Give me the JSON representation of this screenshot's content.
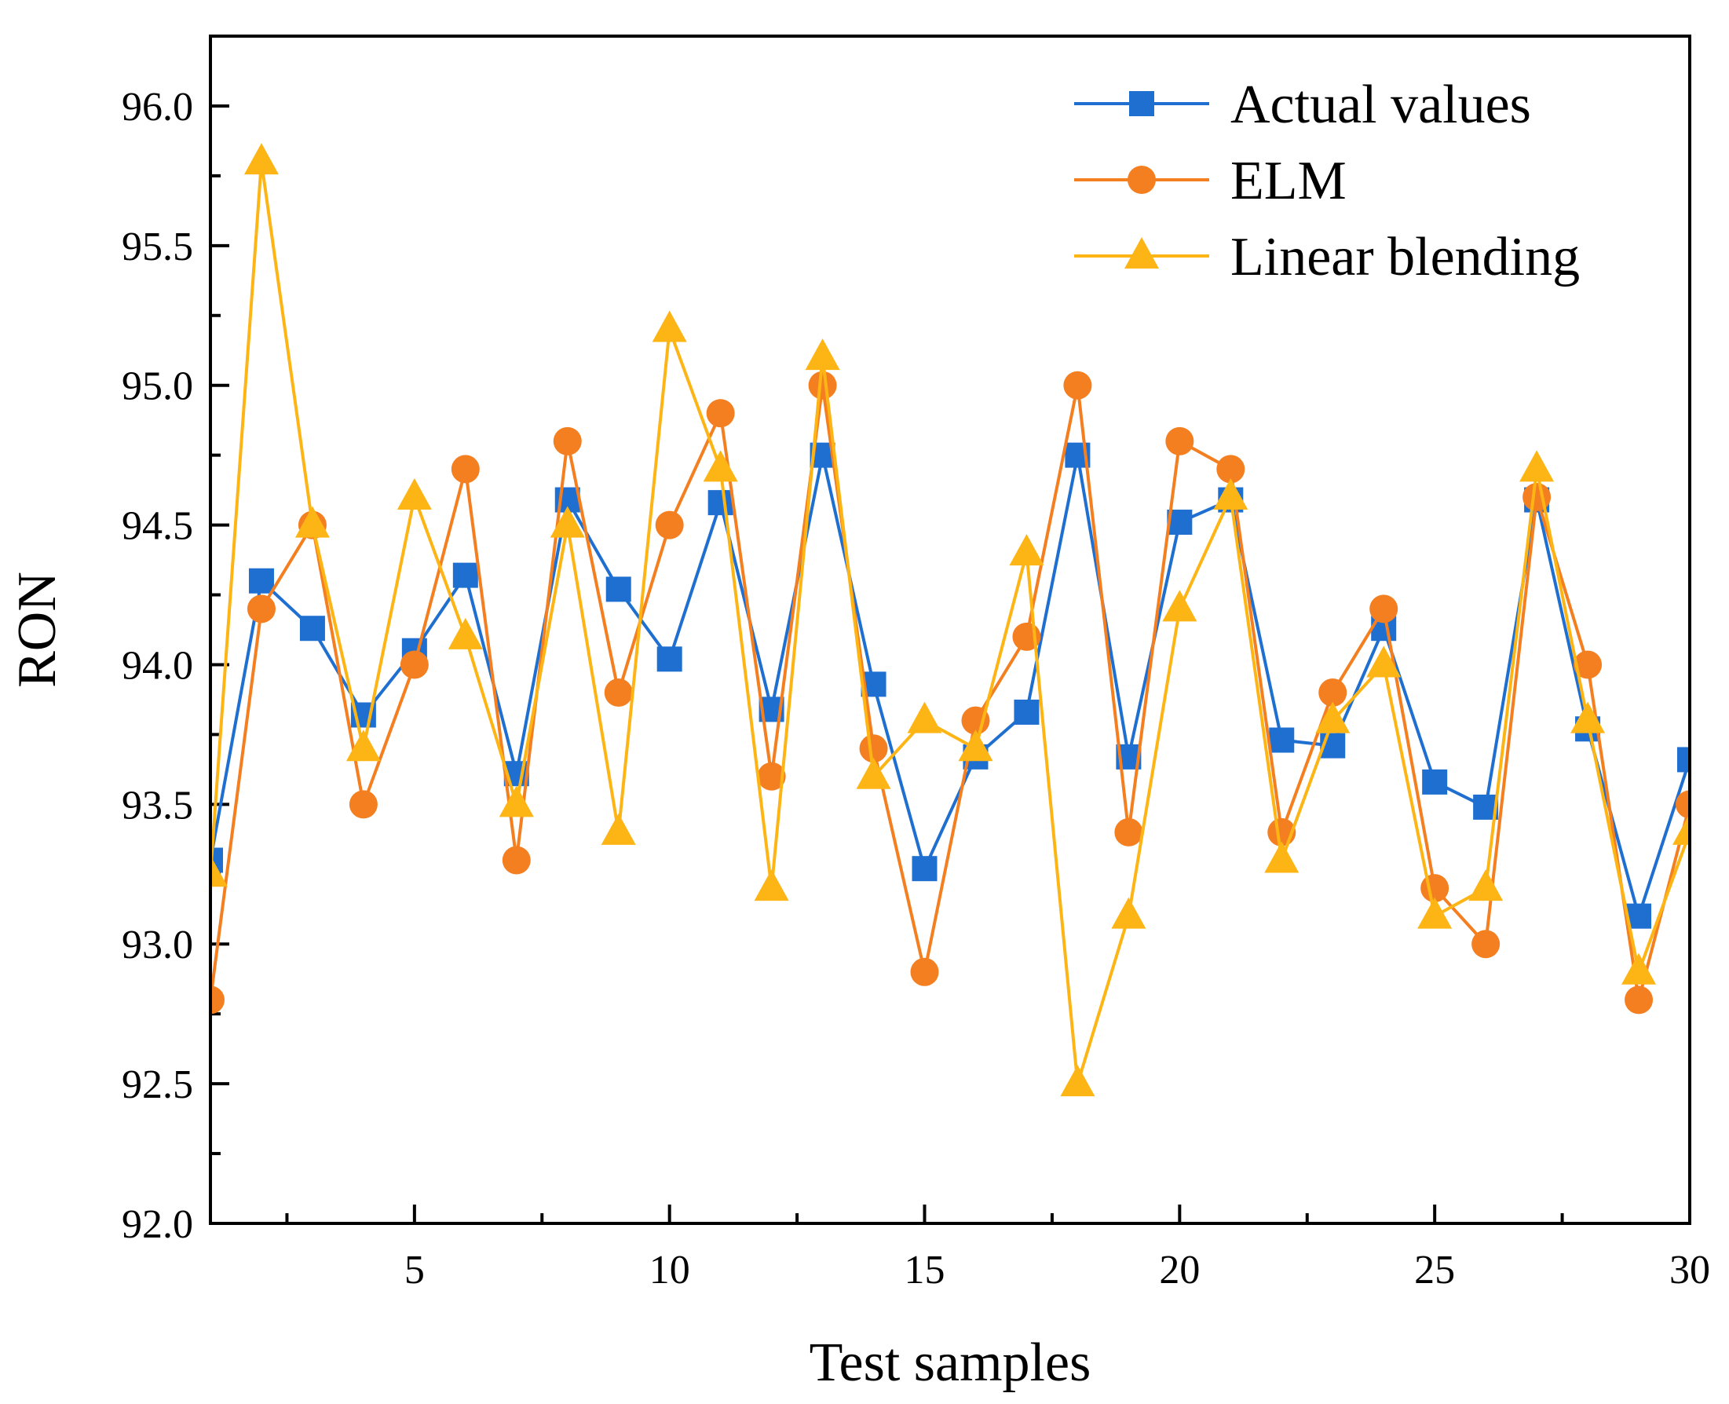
{
  "chart_data": {
    "type": "line",
    "title": "",
    "xlabel": "Test samples",
    "ylabel": "RON",
    "xlim": [
      1,
      30
    ],
    "ylim": [
      92.0,
      96.25
    ],
    "xticks": [
      5,
      10,
      15,
      20,
      25,
      30
    ],
    "xtick_labels": [
      "5",
      "10",
      "15",
      "20",
      "25",
      "30"
    ],
    "yticks": [
      92.0,
      92.5,
      93.0,
      93.5,
      94.0,
      94.5,
      95.0,
      95.5,
      96.0
    ],
    "ytick_labels": [
      "92.0",
      "92.5",
      "93.0",
      "93.5",
      "94.0",
      "94.5",
      "95.0",
      "95.5",
      "96.0"
    ],
    "grid": false,
    "legend_position": "top-right",
    "x": [
      1,
      2,
      3,
      4,
      5,
      6,
      7,
      8,
      9,
      10,
      11,
      12,
      13,
      14,
      15,
      16,
      17,
      18,
      19,
      20,
      21,
      22,
      23,
      24,
      25,
      26,
      27,
      28,
      29,
      30
    ],
    "series": [
      {
        "name": "Actual values",
        "color": "#1f6fd1",
        "marker": "square",
        "values": [
          93.3,
          94.3,
          94.13,
          93.82,
          94.05,
          94.32,
          93.61,
          94.59,
          94.27,
          94.02,
          94.58,
          93.84,
          94.75,
          93.93,
          93.27,
          93.67,
          93.83,
          94.75,
          93.67,
          94.51,
          94.59,
          93.73,
          93.71,
          94.13,
          93.58,
          93.49,
          94.59,
          93.77,
          93.1,
          93.66
        ]
      },
      {
        "name": "ELM",
        "color": "#f47f20",
        "marker": "circle",
        "values": [
          92.8,
          94.2,
          94.5,
          93.5,
          94.0,
          94.7,
          93.3,
          94.8,
          93.9,
          94.5,
          94.9,
          93.6,
          95.0,
          93.7,
          92.9,
          93.8,
          94.1,
          95.0,
          93.4,
          94.8,
          94.7,
          93.4,
          93.9,
          94.2,
          93.2,
          93.0,
          94.6,
          94.0,
          92.8,
          93.5
        ]
      },
      {
        "name": "Linear blending",
        "color": "#fdb515",
        "marker": "triangle",
        "values": [
          93.25,
          95.8,
          94.5,
          93.7,
          94.6,
          94.1,
          93.5,
          94.5,
          93.4,
          95.2,
          94.7,
          93.2,
          95.1,
          93.6,
          93.8,
          93.7,
          94.4,
          92.5,
          93.1,
          94.2,
          94.6,
          93.3,
          93.8,
          94.0,
          93.1,
          93.2,
          94.7,
          93.8,
          92.9,
          93.4
        ]
      }
    ]
  }
}
